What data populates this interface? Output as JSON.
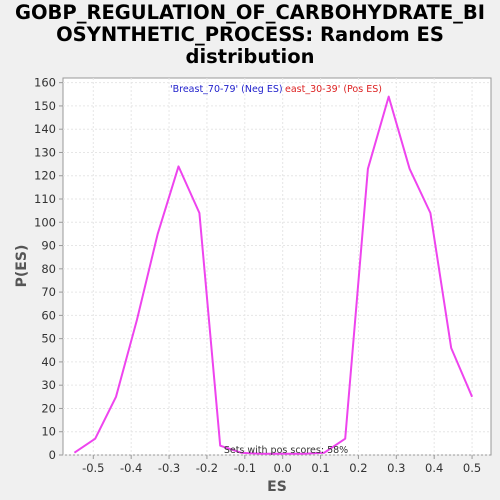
{
  "chart_data": {
    "type": "line",
    "title_lines": [
      "GOBP_REGULATION_OF_CARBOHYDRATE_BI",
      "OSYNTHETIC_PROCESS: Random ES",
      "distribution"
    ],
    "xlabel": "ES",
    "ylabel": "P(ES)",
    "xlim": [
      -0.58,
      0.55
    ],
    "ylim": [
      0,
      162
    ],
    "xticks": [
      -0.5,
      -0.4,
      -0.3,
      -0.2,
      -0.1,
      0.0,
      0.1,
      0.2,
      0.3,
      0.4,
      0.5
    ],
    "xtick_labels": [
      "-0.5",
      "-0.4",
      "-0.3",
      "-0.2",
      "-0.1",
      "0.0",
      "0.1",
      "0.2",
      "0.3",
      "0.4",
      "0.5"
    ],
    "yticks": [
      0,
      10,
      20,
      30,
      40,
      50,
      60,
      70,
      80,
      90,
      100,
      110,
      120,
      130,
      140,
      150,
      160
    ],
    "ytick_labels": [
      "0",
      "10",
      "20",
      "30",
      "40",
      "50",
      "60",
      "70",
      "80",
      "90",
      "100",
      "110",
      "120",
      "130",
      "140",
      "150",
      "160"
    ],
    "grid": true,
    "line_color": "#ee44ee",
    "series": [
      {
        "x": [
          -0.55,
          -0.495,
          -0.44,
          -0.385,
          -0.33,
          -0.275,
          -0.22,
          -0.165,
          -0.11,
          -0.055,
          0.0,
          0.055,
          0.11,
          0.165,
          0.225,
          0.28,
          0.335,
          0.39,
          0.445,
          0.5
        ],
        "y": [
          1,
          7,
          25,
          58,
          95,
          124,
          104,
          4,
          1,
          0.5,
          0.5,
          0.5,
          1,
          7,
          123,
          154,
          123,
          104,
          46,
          25
        ]
      }
    ],
    "annotations": {
      "neg_label": "'Breast_70-79' (Neg ES)",
      "neg_color": "#2222cc",
      "pos_label": "east_30-39' (Pos ES)",
      "pos_color": "#dd2222",
      "footer": "Sets with pos scores: 58%"
    }
  }
}
